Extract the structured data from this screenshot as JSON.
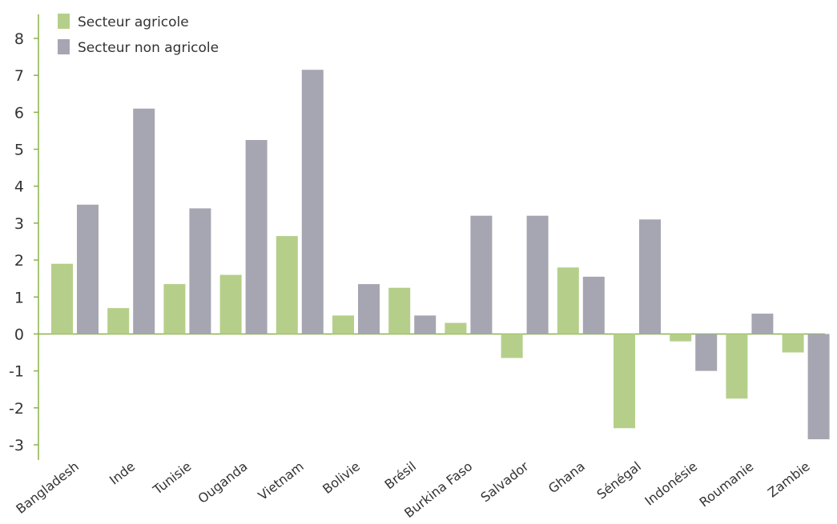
{
  "chart_data": {
    "type": "bar",
    "categories": [
      "Bangladesh",
      "Inde",
      "Tunisie",
      "Ouganda",
      "Vietnam",
      "Bolivie",
      "Brésil",
      "Burkina Faso",
      "Salvador",
      "Ghana",
      "Sénégal",
      "Indonésie",
      "Roumanie",
      "Zambie"
    ],
    "series": [
      {
        "name": "Secteur agricole",
        "color": "#b5cf8a",
        "values": [
          1.9,
          0.7,
          1.35,
          1.6,
          2.65,
          0.5,
          1.25,
          0.3,
          -0.65,
          1.8,
          -2.55,
          -0.2,
          -1.75,
          -0.5
        ]
      },
      {
        "name": "Secteur non agricole",
        "color": "#a6a6b2",
        "values": [
          3.5,
          6.1,
          3.4,
          5.25,
          7.15,
          1.35,
          0.5,
          3.2,
          3.2,
          1.55,
          3.1,
          -1.0,
          0.55,
          -2.85
        ]
      }
    ],
    "yticks": [
      8,
      7,
      6,
      5,
      4,
      3,
      2,
      1,
      0,
      -1,
      -2,
      -3
    ],
    "ylim": [
      -3.3,
      8.6
    ],
    "grid": false,
    "legend_position": "top-left",
    "axis_color": "#8db24a"
  }
}
